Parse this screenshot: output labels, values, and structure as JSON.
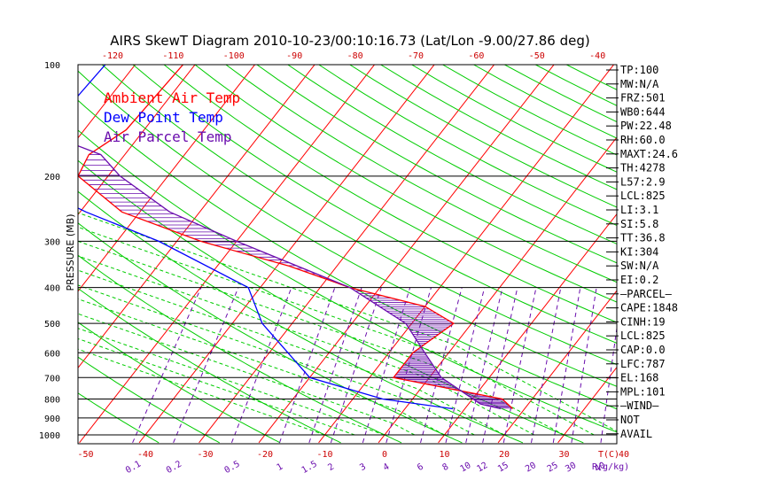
{
  "chart_data": {
    "type": "line",
    "title": "AIRS SkewT Diagram 2010-10-23/00:10:16.73 (Lat/Lon -9.00/27.86 deg)",
    "ylabel": "PRESSURE (MB)",
    "xlabel_bottom": "T(C)",
    "mixing_ratio_unit": "R(g/kg)",
    "pressure_ticks": [
      100,
      200,
      300,
      400,
      500,
      600,
      700,
      800,
      900,
      1000
    ],
    "temp_ticks_bottom": [
      -50,
      -40,
      -30,
      -20,
      -10,
      0,
      10,
      20,
      30,
      40
    ],
    "temp_ticks_top": [
      -120,
      -110,
      -100,
      -90,
      -80,
      -70,
      -60,
      -50,
      -40
    ],
    "mixing_ratio_labels": [
      "0.1",
      "0.2",
      "0.5",
      "1",
      "1.5",
      "2",
      "3",
      "4",
      "6",
      "8",
      "10",
      "12",
      "15",
      "20",
      "25",
      "30",
      "40"
    ],
    "legend": [
      {
        "name": "Ambient Air Temp",
        "color": "#ff0000"
      },
      {
        "name": "Dew Point Temp",
        "color": "#0000ff"
      },
      {
        "name": "Air Parcel Temp",
        "color": "#6a0dad"
      }
    ],
    "series": [
      {
        "name": "Ambient Air Temp",
        "color": "#ff0000",
        "points": [
          [
            100,
            -82
          ],
          [
            150,
            -83
          ],
          [
            175,
            -86
          ],
          [
            200,
            -85
          ],
          [
            250,
            -73
          ],
          [
            300,
            -56
          ],
          [
            350,
            -38
          ],
          [
            400,
            -25
          ],
          [
            450,
            -10
          ],
          [
            500,
            -3
          ],
          [
            600,
            -6
          ],
          [
            700,
            -6
          ],
          [
            800,
            15
          ],
          [
            850,
            18
          ]
        ]
      },
      {
        "name": "Dew Point Temp",
        "color": "#0000ff",
        "points": [
          [
            100,
            -95
          ],
          [
            150,
            -96
          ],
          [
            200,
            -96
          ],
          [
            250,
            -79
          ],
          [
            300,
            -63
          ],
          [
            400,
            -42
          ],
          [
            500,
            -35
          ],
          [
            700,
            -20
          ],
          [
            800,
            -5
          ],
          [
            850,
            8
          ]
        ]
      },
      {
        "name": "Air Parcel Temp",
        "color": "#6a0dad",
        "points": [
          [
            100,
            -100
          ],
          [
            150,
            -98
          ],
          [
            175,
            -84
          ],
          [
            200,
            -78
          ],
          [
            250,
            -65
          ],
          [
            300,
            -50
          ],
          [
            400,
            -25
          ],
          [
            500,
            -11
          ],
          [
            600,
            -4
          ],
          [
            700,
            2
          ],
          [
            825,
            12
          ],
          [
            850,
            16
          ]
        ]
      }
    ],
    "indices": [
      "TP:100",
      "MW:N/A",
      "FRZ:501",
      "WB0:644",
      "PW:22.48",
      "RH:60.0",
      "MAXT:24.6",
      "TH:4278",
      "L57:2.9",
      "LCL:825",
      "LI:3.1",
      "SI:5.8",
      "TT:36.8",
      "KI:304",
      "SW:N/A",
      "EI:0.2",
      "—PARCEL—",
      "CAPE:1848",
      "CINH:19",
      "LCL:825",
      "CAP:0.0",
      "LFC:787",
      "EL:168",
      "MPL:101",
      "—WIND—",
      "NOT",
      "AVAIL"
    ],
    "colors": {
      "isotherm": "#ff0000",
      "dry_adiabat": "#00cc00",
      "mixing_ratio": "#6a0dad",
      "moist_adiabat": "#00cc00",
      "isobar": "#000000"
    }
  }
}
